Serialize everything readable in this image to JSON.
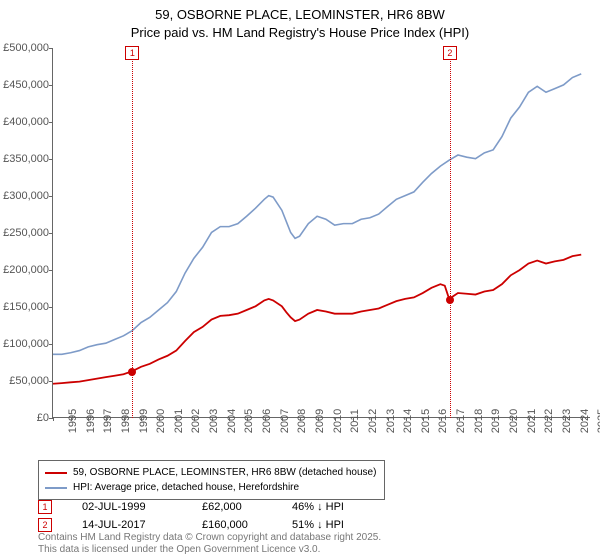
{
  "title": {
    "line1": "59, OSBORNE PLACE, LEOMINSTER, HR6 8BW",
    "line2": "Price paid vs. HM Land Registry's House Price Index (HPI)",
    "fontsize": 13,
    "color": "#000000"
  },
  "chart": {
    "type": "line",
    "background_color": "#ffffff",
    "axis_color": "#666666",
    "xlim": [
      1995,
      2025.5
    ],
    "ylim": [
      0,
      500000
    ],
    "y_ticks": [
      0,
      50000,
      100000,
      150000,
      200000,
      250000,
      300000,
      350000,
      400000,
      450000,
      500000
    ],
    "y_tick_labels": [
      "£0",
      "£50,000",
      "£100,000",
      "£150,000",
      "£200,000",
      "£250,000",
      "£300,000",
      "£350,000",
      "£400,000",
      "£450,000",
      "£500,000"
    ],
    "x_ticks": [
      1995,
      1996,
      1997,
      1998,
      1999,
      2000,
      2001,
      2002,
      2003,
      2004,
      2005,
      2006,
      2007,
      2008,
      2009,
      2010,
      2011,
      2012,
      2013,
      2014,
      2015,
      2016,
      2017,
      2018,
      2019,
      2020,
      2021,
      2022,
      2023,
      2024,
      2025
    ],
    "tick_label_fontsize": 11,
    "tick_label_color": "#555555",
    "series": [
      {
        "name": "hpi",
        "label": "HPI: Average price, detached house, Herefordshire",
        "color": "#7e9bc8",
        "line_width": 1.6,
        "points": [
          [
            1995,
            85000
          ],
          [
            1995.5,
            85000
          ],
          [
            1996,
            87000
          ],
          [
            1996.5,
            90000
          ],
          [
            1997,
            95000
          ],
          [
            1997.5,
            98000
          ],
          [
            1998,
            100000
          ],
          [
            1998.5,
            105000
          ],
          [
            1999,
            110000
          ],
          [
            1999.5,
            117000
          ],
          [
            2000,
            128000
          ],
          [
            2000.5,
            135000
          ],
          [
            2001,
            145000
          ],
          [
            2001.5,
            155000
          ],
          [
            2002,
            170000
          ],
          [
            2002.5,
            195000
          ],
          [
            2003,
            215000
          ],
          [
            2003.5,
            230000
          ],
          [
            2004,
            250000
          ],
          [
            2004.5,
            258000
          ],
          [
            2005,
            258000
          ],
          [
            2005.5,
            262000
          ],
          [
            2006,
            272000
          ],
          [
            2006.5,
            283000
          ],
          [
            2007,
            295000
          ],
          [
            2007.25,
            300000
          ],
          [
            2007.5,
            298000
          ],
          [
            2008,
            280000
          ],
          [
            2008.25,
            265000
          ],
          [
            2008.5,
            250000
          ],
          [
            2008.75,
            242000
          ],
          [
            2009,
            245000
          ],
          [
            2009.5,
            262000
          ],
          [
            2010,
            272000
          ],
          [
            2010.5,
            268000
          ],
          [
            2011,
            260000
          ],
          [
            2011.5,
            262000
          ],
          [
            2012,
            262000
          ],
          [
            2012.5,
            268000
          ],
          [
            2013,
            270000
          ],
          [
            2013.5,
            275000
          ],
          [
            2014,
            285000
          ],
          [
            2014.5,
            295000
          ],
          [
            2015,
            300000
          ],
          [
            2015.5,
            305000
          ],
          [
            2016,
            318000
          ],
          [
            2016.5,
            330000
          ],
          [
            2017,
            340000
          ],
          [
            2017.5,
            348000
          ],
          [
            2018,
            355000
          ],
          [
            2018.5,
            352000
          ],
          [
            2019,
            350000
          ],
          [
            2019.5,
            358000
          ],
          [
            2020,
            362000
          ],
          [
            2020.5,
            380000
          ],
          [
            2021,
            405000
          ],
          [
            2021.5,
            420000
          ],
          [
            2022,
            440000
          ],
          [
            2022.5,
            448000
          ],
          [
            2023,
            440000
          ],
          [
            2023.5,
            445000
          ],
          [
            2024,
            450000
          ],
          [
            2024.5,
            460000
          ],
          [
            2025,
            465000
          ]
        ]
      },
      {
        "name": "price_paid",
        "label": "59, OSBORNE PLACE, LEOMINSTER, HR6 8BW (detached house)",
        "color": "#cc0000",
        "line_width": 1.8,
        "points": [
          [
            1995,
            45000
          ],
          [
            1995.5,
            46000
          ],
          [
            1996,
            47000
          ],
          [
            1996.5,
            48000
          ],
          [
            1997,
            50000
          ],
          [
            1997.5,
            52000
          ],
          [
            1998,
            54000
          ],
          [
            1998.5,
            56000
          ],
          [
            1999,
            58000
          ],
          [
            1999.5,
            62000
          ],
          [
            2000,
            68000
          ],
          [
            2000.5,
            72000
          ],
          [
            2001,
            78000
          ],
          [
            2001.5,
            83000
          ],
          [
            2002,
            90000
          ],
          [
            2002.5,
            103000
          ],
          [
            2003,
            115000
          ],
          [
            2003.5,
            122000
          ],
          [
            2004,
            132000
          ],
          [
            2004.5,
            137000
          ],
          [
            2005,
            138000
          ],
          [
            2005.5,
            140000
          ],
          [
            2006,
            145000
          ],
          [
            2006.5,
            150000
          ],
          [
            2007,
            158000
          ],
          [
            2007.25,
            160000
          ],
          [
            2007.5,
            158000
          ],
          [
            2008,
            150000
          ],
          [
            2008.25,
            142000
          ],
          [
            2008.5,
            135000
          ],
          [
            2008.75,
            130000
          ],
          [
            2009,
            132000
          ],
          [
            2009.5,
            140000
          ],
          [
            2010,
            145000
          ],
          [
            2010.5,
            143000
          ],
          [
            2011,
            140000
          ],
          [
            2011.5,
            140000
          ],
          [
            2012,
            140000
          ],
          [
            2012.5,
            143000
          ],
          [
            2013,
            145000
          ],
          [
            2013.5,
            147000
          ],
          [
            2014,
            152000
          ],
          [
            2014.5,
            157000
          ],
          [
            2015,
            160000
          ],
          [
            2015.5,
            162000
          ],
          [
            2016,
            168000
          ],
          [
            2016.5,
            175000
          ],
          [
            2017,
            180000
          ],
          [
            2017.25,
            178000
          ],
          [
            2017.5,
            160000
          ],
          [
            2018,
            168000
          ],
          [
            2018.5,
            167000
          ],
          [
            2019,
            166000
          ],
          [
            2019.5,
            170000
          ],
          [
            2020,
            172000
          ],
          [
            2020.5,
            180000
          ],
          [
            2021,
            192000
          ],
          [
            2021.5,
            199000
          ],
          [
            2022,
            208000
          ],
          [
            2022.5,
            212000
          ],
          [
            2023,
            208000
          ],
          [
            2023.5,
            211000
          ],
          [
            2024,
            213000
          ],
          [
            2024.5,
            218000
          ],
          [
            2025,
            220000
          ]
        ]
      }
    ],
    "event_markers": [
      {
        "label": "1",
        "x": 1999.5,
        "y": 62000,
        "line_color": "#cc0000",
        "box_color": "#cc0000"
      },
      {
        "label": "2",
        "x": 2017.5,
        "y": 160000,
        "line_color": "#cc0000",
        "box_color": "#cc0000"
      }
    ]
  },
  "legend": {
    "border_color": "#666666",
    "fontsize": 10,
    "items": [
      {
        "color": "#cc0000",
        "label": "59, OSBORNE PLACE, LEOMINSTER, HR6 8BW (detached house)"
      },
      {
        "color": "#7e9bc8",
        "label": "HPI: Average price, detached house, Herefordshire"
      }
    ]
  },
  "events": {
    "fontsize": 11,
    "arrow": "↓",
    "rows": [
      {
        "marker": "1",
        "marker_color": "#cc0000",
        "date": "02-JUL-1999",
        "price": "£62,000",
        "pct": "46% ↓ HPI"
      },
      {
        "marker": "2",
        "marker_color": "#cc0000",
        "date": "14-JUL-2017",
        "price": "£160,000",
        "pct": "51% ↓ HPI"
      }
    ]
  },
  "footer": {
    "line1": "Contains HM Land Registry data © Crown copyright and database right 2025.",
    "line2": "This data is licensed under the Open Government Licence v3.0.",
    "color": "#777777",
    "fontsize": 10
  }
}
